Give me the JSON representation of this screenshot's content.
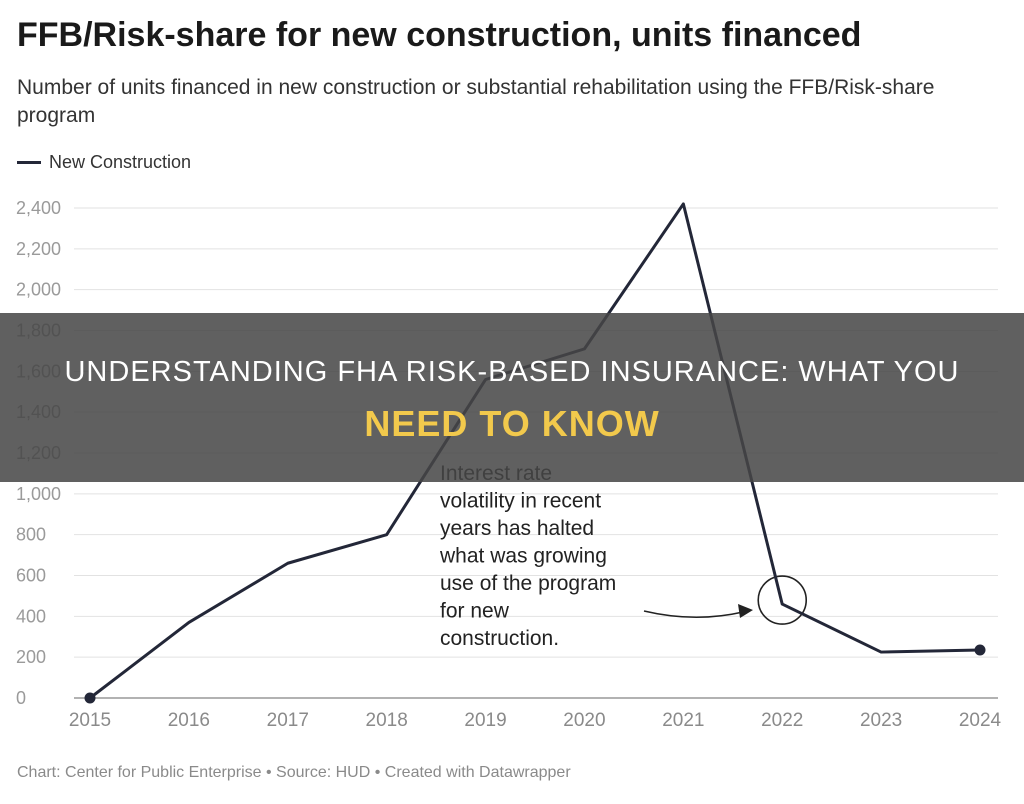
{
  "chart_data": {
    "type": "line",
    "title": "FFB/Risk-share for new construction, units financed",
    "subtitle": "Number of units financed in new construction or substantial rehabilitation using the FFB/Risk-share program",
    "x": [
      "2015",
      "2016",
      "2017",
      "2018",
      "2019",
      "2020",
      "2021",
      "2022",
      "2023",
      "2024"
    ],
    "series": [
      {
        "name": "New Construction",
        "values": [
          0,
          370,
          660,
          800,
          1560,
          1710,
          2420,
          460,
          225,
          235
        ]
      }
    ],
    "ylim": [
      0,
      2400
    ],
    "yticks": [
      "0",
      "200",
      "400",
      "600",
      "800",
      "1,000",
      "1,200",
      "1,400",
      "1,600",
      "1,800",
      "2,000",
      "2,200",
      "2,400"
    ],
    "legend_position": "top-left",
    "grid": true,
    "annotation": {
      "lines": [
        "Interest rate",
        "volatility in recent",
        "years has halted",
        "what was growing",
        "use of the program",
        "for new",
        "construction."
      ],
      "target_x": "2022"
    },
    "footer": "Chart: Center for Public Enterprise • Source: HUD • Created with Datawrapper",
    "colors": {
      "line": "#232738",
      "grid": "#e2e2e2",
      "tick_text": "#8a8a8a"
    }
  },
  "overlay": {
    "line1": "UNDERSTANDING FHA RISK-BASED INSURANCE: WHAT YOU",
    "line2": "NEED TO KNOW",
    "accent": "#f2c94c"
  }
}
